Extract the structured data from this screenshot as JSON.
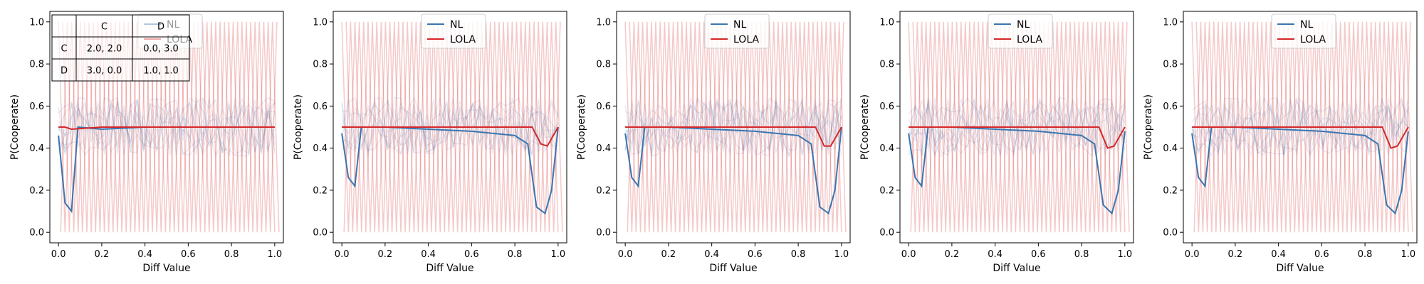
{
  "chart_data": [
    {
      "type": "line",
      "xlabel": "Diff Value",
      "ylabel": "P(Cooperate)",
      "xlim": [
        -0.04,
        1.04
      ],
      "ylim": [
        -0.05,
        1.05
      ],
      "xticks": [
        "0.0",
        "0.2",
        "0.4",
        "0.6",
        "0.8",
        "1.0"
      ],
      "yticks": [
        "0.0",
        "0.2",
        "0.4",
        "0.6",
        "0.8",
        "1.0"
      ],
      "legend": {
        "placement": "top-center",
        "entries": [
          "NL",
          "LOLA"
        ]
      },
      "series": [
        {
          "name": "NL",
          "color": "#3b75af",
          "x": [
            0.0,
            0.03,
            0.06,
            0.09,
            0.2,
            0.4,
            0.6,
            0.8,
            1.0
          ],
          "y": [
            0.46,
            0.14,
            0.1,
            0.5,
            0.49,
            0.5,
            0.5,
            0.5,
            0.5
          ]
        },
        {
          "name": "LOLA",
          "color": "#d62728",
          "x": [
            0.0,
            0.03,
            0.06,
            0.2,
            0.4,
            0.6,
            0.8,
            1.0
          ],
          "y": [
            0.5,
            0.5,
            0.49,
            0.5,
            0.5,
            0.5,
            0.5,
            0.5
          ]
        }
      ],
      "payoff_table": {
        "header": [
          "",
          "C",
          "D"
        ],
        "rows": [
          [
            "C",
            "2.0, 2.0",
            "0.0, 3.0"
          ],
          [
            "D",
            "3.0, 0.0",
            "1.0, 1.0"
          ]
        ]
      }
    },
    {
      "type": "line",
      "xlabel": "Diff Value",
      "ylabel": "P(Cooperate)",
      "xlim": [
        -0.04,
        1.04
      ],
      "ylim": [
        -0.05,
        1.05
      ],
      "xticks": [
        "0.0",
        "0.2",
        "0.4",
        "0.6",
        "0.8",
        "1.0"
      ],
      "yticks": [
        "0.0",
        "0.2",
        "0.4",
        "0.6",
        "0.8",
        "1.0"
      ],
      "legend": {
        "placement": "top-center",
        "entries": [
          "NL",
          "LOLA"
        ]
      },
      "series": [
        {
          "name": "NL",
          "color": "#3b75af",
          "x": [
            0.0,
            0.03,
            0.06,
            0.09,
            0.2,
            0.4,
            0.6,
            0.8,
            0.86,
            0.9,
            0.94,
            0.97,
            1.0
          ],
          "y": [
            0.47,
            0.26,
            0.22,
            0.5,
            0.5,
            0.49,
            0.48,
            0.46,
            0.42,
            0.12,
            0.09,
            0.2,
            0.5
          ]
        },
        {
          "name": "LOLA",
          "color": "#d62728",
          "x": [
            0.0,
            0.1,
            0.2,
            0.4,
            0.6,
            0.8,
            0.88,
            0.92,
            0.95,
            1.0
          ],
          "y": [
            0.5,
            0.5,
            0.5,
            0.5,
            0.5,
            0.5,
            0.5,
            0.42,
            0.41,
            0.5
          ]
        }
      ]
    },
    {
      "type": "line",
      "xlabel": "Diff Value",
      "ylabel": "P(Cooperate)",
      "xlim": [
        -0.04,
        1.04
      ],
      "ylim": [
        -0.05,
        1.05
      ],
      "xticks": [
        "0.0",
        "0.2",
        "0.4",
        "0.6",
        "0.8",
        "1.0"
      ],
      "yticks": [
        "0.0",
        "0.2",
        "0.4",
        "0.6",
        "0.8",
        "1.0"
      ],
      "legend": {
        "placement": "top-center",
        "entries": [
          "NL",
          "LOLA"
        ]
      },
      "series": [
        {
          "name": "NL",
          "color": "#3b75af",
          "x": [
            0.0,
            0.03,
            0.06,
            0.09,
            0.2,
            0.4,
            0.6,
            0.8,
            0.86,
            0.9,
            0.94,
            0.97,
            1.0
          ],
          "y": [
            0.47,
            0.26,
            0.22,
            0.5,
            0.5,
            0.49,
            0.48,
            0.46,
            0.42,
            0.12,
            0.09,
            0.2,
            0.5
          ]
        },
        {
          "name": "LOLA",
          "color": "#d62728",
          "x": [
            0.0,
            0.1,
            0.2,
            0.4,
            0.6,
            0.8,
            0.88,
            0.92,
            0.95,
            1.0
          ],
          "y": [
            0.5,
            0.5,
            0.5,
            0.5,
            0.5,
            0.5,
            0.5,
            0.41,
            0.41,
            0.5
          ]
        }
      ]
    },
    {
      "type": "line",
      "xlabel": "Diff Value",
      "ylabel": "P(Cooperate)",
      "xlim": [
        -0.04,
        1.04
      ],
      "ylim": [
        -0.05,
        1.05
      ],
      "xticks": [
        "0.0",
        "0.2",
        "0.4",
        "0.6",
        "0.8",
        "1.0"
      ],
      "yticks": [
        "0.0",
        "0.2",
        "0.4",
        "0.6",
        "0.8",
        "1.0"
      ],
      "legend": {
        "placement": "top-center",
        "entries": [
          "NL",
          "LOLA"
        ]
      },
      "series": [
        {
          "name": "NL",
          "color": "#3b75af",
          "x": [
            0.0,
            0.03,
            0.06,
            0.09,
            0.2,
            0.4,
            0.6,
            0.8,
            0.86,
            0.9,
            0.94,
            0.97,
            1.0
          ],
          "y": [
            0.47,
            0.26,
            0.22,
            0.5,
            0.5,
            0.49,
            0.48,
            0.46,
            0.42,
            0.13,
            0.09,
            0.2,
            0.48
          ]
        },
        {
          "name": "LOLA",
          "color": "#d62728",
          "x": [
            0.0,
            0.1,
            0.2,
            0.4,
            0.6,
            0.8,
            0.88,
            0.92,
            0.95,
            1.0
          ],
          "y": [
            0.5,
            0.5,
            0.5,
            0.5,
            0.5,
            0.5,
            0.5,
            0.4,
            0.41,
            0.5
          ]
        }
      ]
    },
    {
      "type": "line",
      "xlabel": "Diff Value",
      "ylabel": "P(Cooperate)",
      "xlim": [
        -0.04,
        1.04
      ],
      "ylim": [
        -0.05,
        1.05
      ],
      "xticks": [
        "0.0",
        "0.2",
        "0.4",
        "0.6",
        "0.8",
        "1.0"
      ],
      "yticks": [
        "0.0",
        "0.2",
        "0.4",
        "0.6",
        "0.8",
        "1.0"
      ],
      "legend": {
        "placement": "top-center",
        "entries": [
          "NL",
          "LOLA"
        ]
      },
      "series": [
        {
          "name": "NL",
          "color": "#3b75af",
          "x": [
            0.0,
            0.03,
            0.06,
            0.09,
            0.2,
            0.4,
            0.6,
            0.8,
            0.86,
            0.9,
            0.94,
            0.97,
            1.0
          ],
          "y": [
            0.47,
            0.26,
            0.22,
            0.5,
            0.5,
            0.49,
            0.48,
            0.46,
            0.42,
            0.13,
            0.09,
            0.2,
            0.48
          ]
        },
        {
          "name": "LOLA",
          "color": "#d62728",
          "x": [
            0.0,
            0.1,
            0.2,
            0.4,
            0.6,
            0.8,
            0.88,
            0.92,
            0.95,
            1.0
          ],
          "y": [
            0.5,
            0.5,
            0.5,
            0.5,
            0.5,
            0.5,
            0.5,
            0.4,
            0.41,
            0.5
          ]
        }
      ]
    }
  ]
}
